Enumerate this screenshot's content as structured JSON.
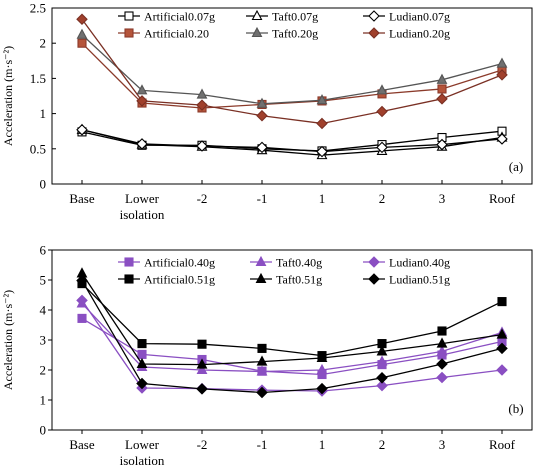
{
  "chart_data": [
    {
      "type": "line",
      "panel_label": "(a)",
      "categories": [
        "Base",
        "Lower isolation",
        "-2",
        "-1",
        "1",
        "2",
        "3",
        "Roof"
      ],
      "ylabel": "Acceleration (m·s⁻²)",
      "ylim": [
        0,
        2.5
      ],
      "yticks": [
        0,
        0.5,
        1,
        1.5,
        2,
        2.5
      ],
      "ytick_labels": [
        "0",
        "0.5",
        "1",
        "1.5",
        "2",
        "2.5"
      ],
      "xtick_labels": [
        [
          "Base"
        ],
        [
          "Lower",
          "isolation"
        ],
        [
          "-2"
        ],
        [
          "-1"
        ],
        [
          "1"
        ],
        [
          "2"
        ],
        [
          "3"
        ],
        [
          "Roof"
        ]
      ],
      "grid": false,
      "legend_position": "top",
      "legend_columns": 3,
      "series": [
        {
          "name": "Artificial0.07g",
          "values": [
            0.74,
            0.55,
            0.55,
            0.5,
            0.47,
            0.56,
            0.66,
            0.75
          ],
          "color": "#000000",
          "marker": "square-open",
          "fill": "#ffffff"
        },
        {
          "name": "Taft0.07g",
          "values": [
            0.77,
            0.56,
            0.53,
            0.48,
            0.41,
            0.47,
            0.53,
            0.66
          ],
          "color": "#000000",
          "marker": "triangle-open",
          "fill": "#ffffff"
        },
        {
          "name": "Ludian0.07g",
          "values": [
            0.77,
            0.57,
            0.54,
            0.52,
            0.46,
            0.52,
            0.56,
            0.64
          ],
          "color": "#000000",
          "marker": "diamond-open",
          "fill": "#ffffff"
        },
        {
          "name": "Artificial0.20",
          "values": [
            2.0,
            1.15,
            1.08,
            1.13,
            1.18,
            1.28,
            1.35,
            1.62
          ],
          "color": "#8b3a2a",
          "marker": "square",
          "fill": "#b5543a"
        },
        {
          "name": "Taft0.20g",
          "values": [
            2.12,
            1.33,
            1.27,
            1.14,
            1.19,
            1.33,
            1.48,
            1.71
          ],
          "color": "#555555",
          "marker": "triangle",
          "fill": "#707070"
        },
        {
          "name": "Ludian0.20g",
          "values": [
            2.34,
            1.18,
            1.12,
            0.97,
            0.86,
            1.03,
            1.21,
            1.55
          ],
          "color": "#7a3024",
          "marker": "diamond",
          "fill": "#a0402c"
        }
      ]
    },
    {
      "type": "line",
      "panel_label": "(b)",
      "categories": [
        "Base",
        "Lower isolation",
        "-2",
        "-1",
        "1",
        "2",
        "3",
        "Roof"
      ],
      "ylabel": "Acceleration (m·s⁻²)",
      "ylim": [
        0,
        6
      ],
      "yticks": [
        0,
        1,
        2,
        3,
        4,
        5,
        6
      ],
      "ytick_labels": [
        "0",
        "1",
        "2",
        "3",
        "4",
        "5",
        "6"
      ],
      "xtick_labels": [
        [
          "Base"
        ],
        [
          "Lower",
          "isolation"
        ],
        [
          "-2"
        ],
        [
          "-1"
        ],
        [
          "1"
        ],
        [
          "2"
        ],
        [
          "3"
        ],
        [
          "Roof"
        ]
      ],
      "grid": false,
      "legend_position": "top",
      "legend_columns": 3,
      "series": [
        {
          "name": "Artificial0.40g",
          "values": [
            3.72,
            2.52,
            2.35,
            1.96,
            1.85,
            2.18,
            2.5,
            2.95
          ],
          "color": "#8a4fc2",
          "marker": "square",
          "fill": "#8a4fc2"
        },
        {
          "name": "Taft0.40g",
          "values": [
            4.22,
            2.1,
            2.0,
            1.95,
            2.0,
            2.28,
            2.62,
            3.25
          ],
          "color": "#8a4fc2",
          "marker": "triangle",
          "fill": "#8a4fc2"
        },
        {
          "name": "Ludian0.40g",
          "values": [
            4.32,
            1.4,
            1.38,
            1.33,
            1.3,
            1.48,
            1.75,
            2.0
          ],
          "color": "#8a4fc2",
          "marker": "diamond",
          "fill": "#8a4fc2"
        },
        {
          "name": "Artificial0.51g",
          "values": [
            4.88,
            2.88,
            2.86,
            2.72,
            2.48,
            2.88,
            3.3,
            4.28
          ],
          "color": "#000000",
          "marker": "square",
          "fill": "#000000"
        },
        {
          "name": "Taft0.51g",
          "values": [
            5.22,
            2.2,
            2.18,
            2.28,
            2.4,
            2.62,
            2.88,
            3.18
          ],
          "color": "#000000",
          "marker": "triangle",
          "fill": "#000000"
        },
        {
          "name": "Ludian0.51g",
          "values": [
            4.98,
            1.55,
            1.37,
            1.25,
            1.38,
            1.74,
            2.2,
            2.72
          ],
          "color": "#000000",
          "marker": "diamond",
          "fill": "#000000"
        }
      ]
    }
  ]
}
